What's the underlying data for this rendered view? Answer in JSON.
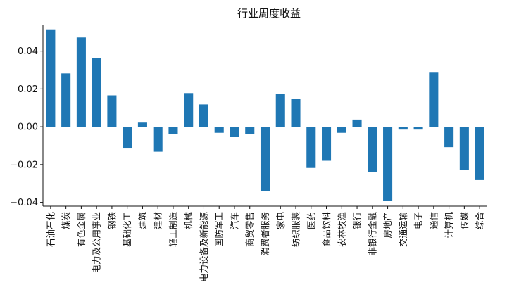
{
  "chart_data": {
    "type": "bar",
    "title": "行业周度收益",
    "xlabel": "",
    "ylabel": "",
    "ylim": [
      -0.042,
      0.054
    ],
    "yticks": [
      -0.04,
      -0.02,
      0.0,
      0.02,
      0.04
    ],
    "ytick_labels": [
      "−0.04",
      "−0.02",
      "0.00",
      "0.02",
      "0.04"
    ],
    "grid": false,
    "categories": [
      "石油石化",
      "煤炭",
      "有色金属",
      "电力及公用事业",
      "钢铁",
      "基础化工",
      "建筑",
      "建材",
      "轻工制造",
      "机械",
      "电力设备及新能源",
      "国防军工",
      "汽车",
      "商贸零售",
      "消费者服务",
      "家电",
      "纺织服装",
      "医药",
      "食品饮料",
      "农林牧渔",
      "银行",
      "非银行金融",
      "房地产",
      "交通运输",
      "电子",
      "通信",
      "计算机",
      "传媒",
      "综合"
    ],
    "values": [
      0.0515,
      0.0282,
      0.0472,
      0.0362,
      0.0166,
      -0.0115,
      0.0022,
      -0.0132,
      -0.004,
      0.0178,
      0.0118,
      -0.0032,
      -0.0052,
      -0.004,
      -0.034,
      0.0172,
      0.0146,
      -0.0218,
      -0.018,
      -0.0032,
      0.0038,
      -0.024,
      -0.0392,
      -0.0015,
      -0.0015,
      0.0286,
      -0.0108,
      -0.023,
      -0.0282
    ],
    "color": "#1f77b4"
  }
}
